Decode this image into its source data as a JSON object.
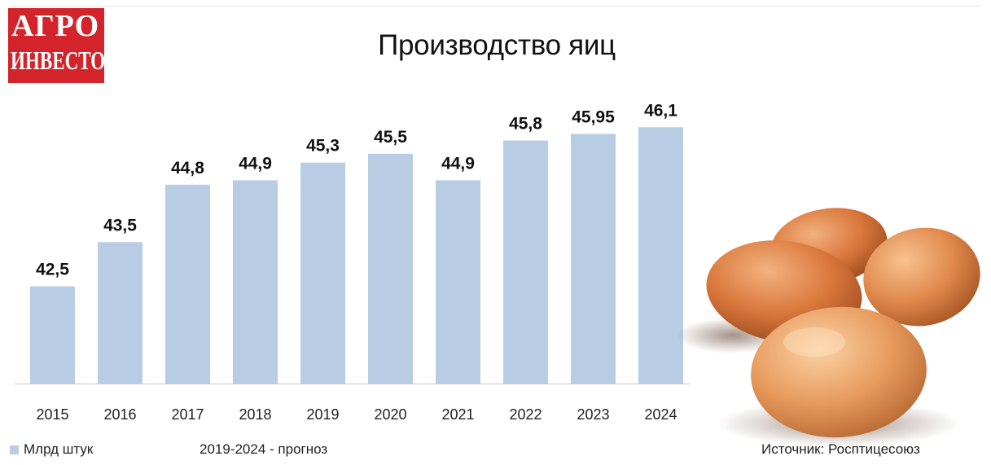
{
  "logo": {
    "line1": "АГРО",
    "line2": "ИНВЕСТОР"
  },
  "colors": {
    "bar": "#b8cde3",
    "logo": "#d3242b",
    "axis": "#c8c8c8"
  },
  "chart_data": {
    "type": "bar",
    "title": "Производство яиц",
    "categories": [
      "2015",
      "2016",
      "2017",
      "2018",
      "2019",
      "2020",
      "2021",
      "2022",
      "2023",
      "2024"
    ],
    "series": [
      {
        "name": "Млрд штук",
        "values": [
          42.5,
          43.5,
          44.8,
          44.9,
          45.3,
          45.5,
          44.9,
          45.8,
          45.95,
          46.1
        ]
      }
    ],
    "data_labels": [
      "42,5",
      "43,5",
      "44,8",
      "44,9",
      "45,3",
      "45,5",
      "44,9",
      "45,8",
      "45,95",
      "46,1"
    ],
    "ylim": [
      40.3,
      46.4
    ],
    "grid": false,
    "legend": "bottom-left"
  },
  "notes": {
    "forecast": "2019-2024 - прогноз",
    "source": "Источник: Росптицесоюз"
  },
  "image": {
    "icon": "eggs-illustration"
  }
}
